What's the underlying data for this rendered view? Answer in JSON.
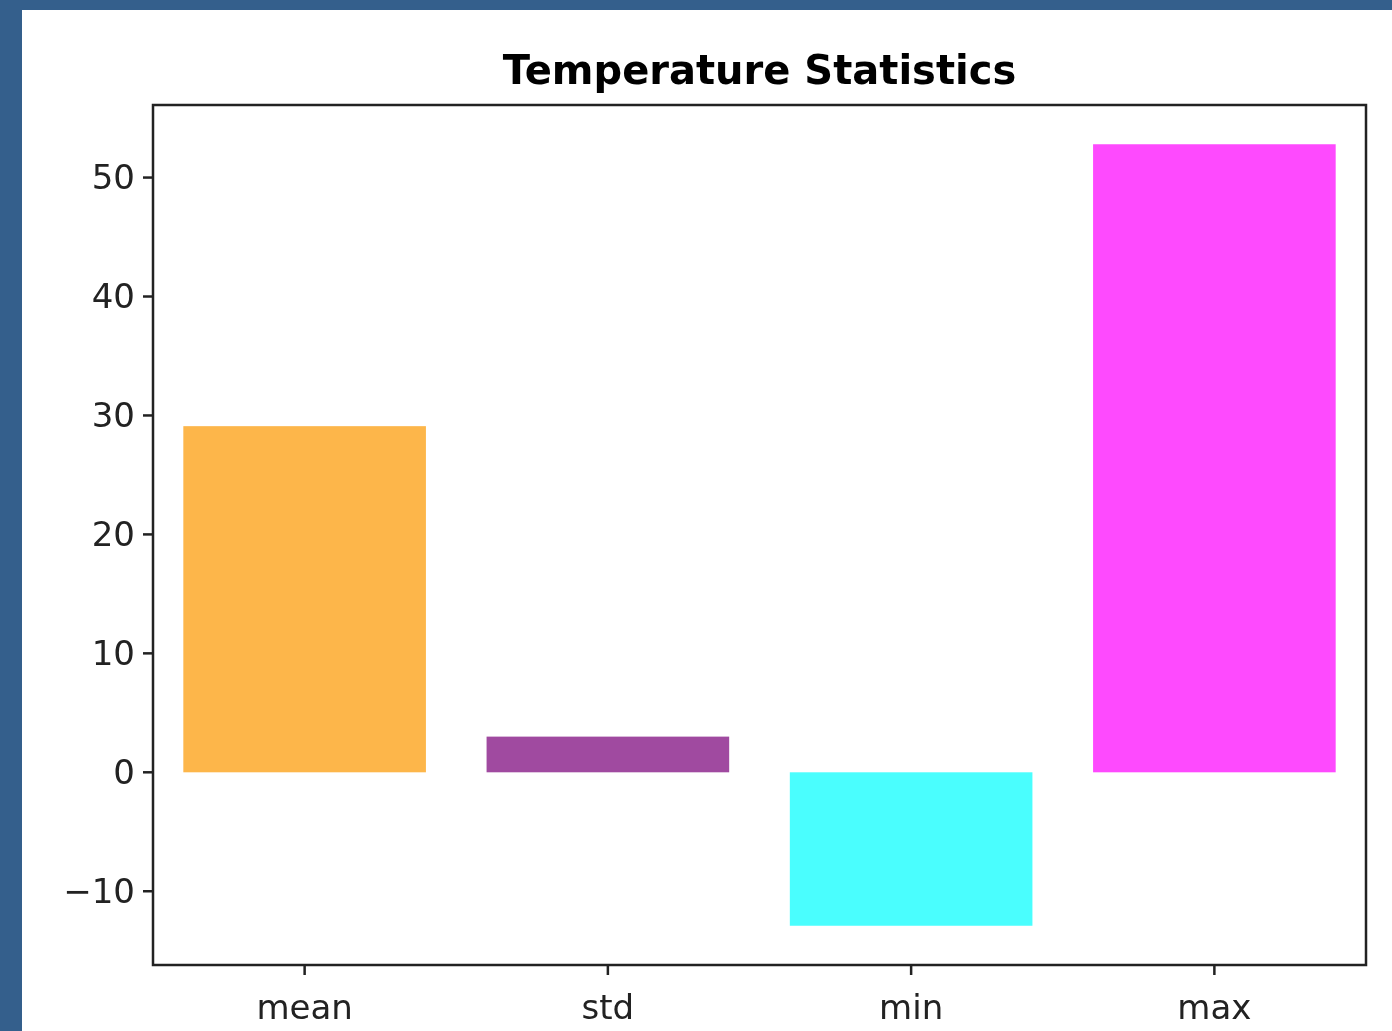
{
  "chart_data": {
    "type": "bar",
    "title": "Temperature Statistics",
    "categories": [
      "mean",
      "std",
      "min",
      "max"
    ],
    "values": [
      29.1,
      3.0,
      -12.9,
      52.8
    ],
    "colors": [
      "#fdb64a",
      "#a04aa0",
      "#4afefe",
      "#fe4afe"
    ],
    "ylim": [
      -16.2,
      56.1
    ],
    "yticks": [
      {
        "value": -10,
        "label": "−10"
      },
      0,
      10,
      20,
      30,
      40,
      50
    ],
    "grid": false
  }
}
